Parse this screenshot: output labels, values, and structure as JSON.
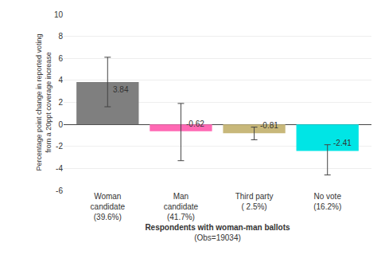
{
  "chart_data": {
    "type": "bar",
    "categories": [
      "Woman\ncandidate\n(39.6%)",
      "Man\ncandidate\n(41.7%)",
      "Third party\n( 2.5%)",
      "No vote\n(16.2%)"
    ],
    "values": [
      3.84,
      -0.62,
      -0.81,
      -2.41
    ],
    "colors": [
      "#7f7f7f",
      "#FF69B4",
      "#C8B87A",
      "#00E5E5"
    ],
    "error_low": [
      1.6,
      -3.3,
      -1.4,
      -4.6
    ],
    "error_high": [
      6.1,
      1.9,
      -0.25,
      -1.85
    ],
    "data_labels": true,
    "xlabel": "Respondents with woman-man ballots",
    "xlabel_sub": "(Obs=19034)",
    "ylabel": "Percentage point change in reported voting\nfrom a 20ppt coverage increase",
    "ylim": [
      -6,
      10
    ],
    "yticks": [
      -6,
      -4,
      -2,
      0,
      2,
      4,
      6,
      8,
      10
    ],
    "grid": true
  }
}
